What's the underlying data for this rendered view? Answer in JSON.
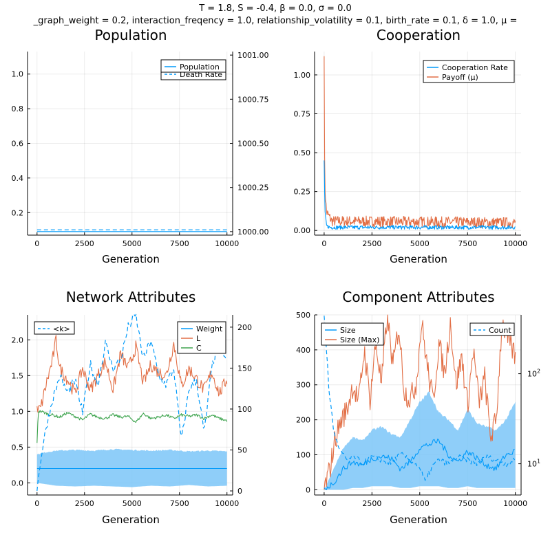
{
  "figure": {
    "suptitle_line1": "T = 1.8, S = -0.4, β = 0.0, σ = 0.0",
    "suptitle_line2": "_graph_weight = 0.2, interaction_freqency = 1.0, relationship_volatility = 0.1, birth_rate = 0.1, δ = 1.0, μ ="
  },
  "colors": {
    "blue": "#009AFA",
    "orange": "#E26F46",
    "green": "#3EA44E",
    "band": "#7BC6F8"
  },
  "chart_data": [
    {
      "id": "population",
      "type": "line",
      "title": "Population",
      "xlabel": "Generation",
      "ylabel": "",
      "xlim": [
        -500,
        10300
      ],
      "xticks": [
        0,
        2500,
        5000,
        7500,
        10000
      ],
      "xtick_labels": [
        "0",
        "2500",
        "5000",
        "7500",
        "10000"
      ],
      "ylim": [
        0.07,
        1.13
      ],
      "yticks": [
        0.2,
        0.4,
        0.6,
        0.8,
        1.0
      ],
      "ytick_labels": [
        "0.2",
        "0.4",
        "0.6",
        "0.8",
        "1.0"
      ],
      "y2lim": [
        999.98,
        1001.02
      ],
      "y2ticks": [
        1000.0,
        1000.25,
        1000.5,
        1000.75,
        1001.0
      ],
      "y2tick_labels": [
        "1000.00",
        "1000.25",
        "1000.50",
        "1000.75",
        "1001.00"
      ],
      "legend_position": "top-right",
      "series": [
        {
          "name": "Population",
          "axis": "right",
          "color": "blue",
          "dash": "solid",
          "x": [
            0,
            10000
          ],
          "y": [
            1000.0,
            1000.0
          ]
        },
        {
          "name": "Death Rate",
          "axis": "left",
          "color": "blue",
          "dash": "dashed",
          "x": [
            0,
            10000
          ],
          "y": [
            0.1,
            0.1
          ]
        }
      ]
    },
    {
      "id": "cooperation",
      "type": "line",
      "title": "Cooperation",
      "xlabel": "Generation",
      "ylabel": "",
      "xlim": [
        -500,
        10300
      ],
      "xticks": [
        0,
        2500,
        5000,
        7500,
        10000
      ],
      "xtick_labels": [
        "0",
        "2500",
        "5000",
        "7500",
        "10000"
      ],
      "ylim": [
        -0.03,
        1.15
      ],
      "yticks": [
        0.0,
        0.25,
        0.5,
        0.75,
        1.0
      ],
      "ytick_labels": [
        "0.00",
        "0.25",
        "0.50",
        "0.75",
        "1.00"
      ],
      "legend_position": "top-right",
      "series": [
        {
          "name": "Cooperation Rate",
          "color": "blue",
          "profile": {
            "x": [
              0,
              40,
              120,
              300,
              10000
            ],
            "y": [
              0.45,
              0.12,
              0.03,
              0.02,
              0.02
            ]
          },
          "noise": 0.01
        },
        {
          "name": "Payoff (μ)",
          "color": "orange",
          "profile": {
            "x": [
              0,
              30,
              120,
              400,
              10000
            ],
            "y": [
              1.12,
              0.3,
              0.12,
              0.06,
              0.05
            ]
          },
          "noise": 0.03
        }
      ]
    },
    {
      "id": "network",
      "type": "line",
      "title": "Network Attributes",
      "xlabel": "Generation",
      "ylabel": "",
      "xlim": [
        -500,
        10300
      ],
      "xticks": [
        0,
        2500,
        5000,
        7500,
        10000
      ],
      "xtick_labels": [
        "0",
        "2500",
        "5000",
        "7500",
        "10000"
      ],
      "ylim": [
        -0.17,
        2.35
      ],
      "yticks": [
        0.0,
        0.5,
        1.0,
        1.5,
        2.0
      ],
      "ytick_labels": [
        "0.0",
        "0.5",
        "1.0",
        "1.5",
        "2.0"
      ],
      "y2lim": [
        -5,
        215
      ],
      "y2ticks": [
        0,
        50,
        100,
        150,
        200
      ],
      "y2tick_labels": [
        "0",
        "50",
        "100",
        "150",
        "200"
      ],
      "legend_left": "top-left",
      "legend_right": "top-right",
      "series": [
        {
          "name": "<k>",
          "axis": "right",
          "color": "blue",
          "dash": "dashed",
          "x": [
            0,
            200,
            500,
            800,
            1200,
            1600,
            2000,
            2400,
            2800,
            3200,
            3600,
            4000,
            4400,
            4800,
            5200,
            5600,
            6000,
            6400,
            6800,
            7200,
            7600,
            8000,
            8400,
            8800,
            9200,
            9600,
            10000
          ],
          "y": [
            0,
            40,
            80,
            110,
            140,
            120,
            135,
            95,
            155,
            130,
            180,
            150,
            160,
            200,
            215,
            160,
            185,
            140,
            130,
            150,
            60,
            125,
            135,
            70,
            150,
            190,
            155
          ]
        },
        {
          "name": "Weight",
          "axis": "left",
          "color": "blue",
          "dash": "solid",
          "x": [
            0,
            10000
          ],
          "y": [
            0.2,
            0.2
          ],
          "band_x": [
            0,
            500,
            1000,
            2000,
            3000,
            4000,
            5000,
            6000,
            7000,
            8000,
            9000,
            10000
          ],
          "band_lower": [
            0.0,
            -0.02,
            -0.04,
            -0.05,
            -0.04,
            -0.05,
            -0.06,
            -0.04,
            -0.05,
            -0.03,
            -0.05,
            -0.04
          ],
          "band_upper": [
            0.4,
            0.43,
            0.45,
            0.46,
            0.45,
            0.47,
            0.46,
            0.45,
            0.46,
            0.44,
            0.45,
            0.44
          ]
        },
        {
          "name": "L",
          "axis": "left",
          "color": "orange",
          "dash": "solid",
          "x": [
            0,
            200,
            500,
            800,
            1000,
            1200,
            1600,
            2000,
            2400,
            2800,
            3200,
            3600,
            4000,
            4400,
            4800,
            5200,
            5600,
            6000,
            6400,
            6800,
            7200,
            7600,
            8000,
            8400,
            8800,
            9200,
            9600,
            10000
          ],
          "y": [
            1.0,
            1.05,
            1.4,
            1.7,
            2.0,
            1.6,
            1.45,
            1.25,
            1.6,
            1.3,
            1.5,
            1.7,
            1.3,
            1.8,
            1.6,
            1.9,
            1.4,
            1.65,
            1.55,
            1.5,
            1.95,
            1.35,
            1.6,
            1.45,
            1.3,
            1.55,
            1.25,
            1.45
          ]
        },
        {
          "name": "C",
          "axis": "left",
          "color": "green",
          "dash": "solid",
          "x": [
            0,
            60,
            200,
            500,
            800,
            1200,
            1600,
            2000,
            2400,
            2800,
            3200,
            3600,
            4000,
            4400,
            4800,
            5200,
            5600,
            6000,
            6400,
            6800,
            7200,
            7600,
            8000,
            8400,
            8800,
            9200,
            9600,
            10000
          ],
          "y": [
            0.55,
            1.0,
            1.0,
            0.97,
            0.95,
            0.92,
            0.98,
            0.93,
            0.88,
            0.96,
            0.92,
            0.9,
            0.95,
            0.92,
            0.93,
            0.85,
            0.97,
            0.9,
            0.92,
            0.95,
            0.9,
            0.95,
            0.93,
            0.95,
            0.9,
            0.95,
            0.9,
            0.87
          ]
        }
      ]
    },
    {
      "id": "component",
      "type": "line",
      "title": "Component Attributes",
      "xlabel": "Generation",
      "ylabel": "",
      "xlim": [
        -500,
        10300
      ],
      "xticks": [
        0,
        2500,
        5000,
        7500,
        10000
      ],
      "xtick_labels": [
        "0",
        "2500",
        "5000",
        "7500",
        "10000"
      ],
      "ylim": [
        -15,
        500
      ],
      "yticks": [
        0,
        100,
        200,
        300,
        400,
        500
      ],
      "ytick_labels": [
        "0",
        "100",
        "200",
        "300",
        "400",
        "500"
      ],
      "y2_scale": "log",
      "y2lim": [
        4.5,
        450
      ],
      "y2ticks": [
        10,
        100
      ],
      "y2tick_base": "10",
      "y2tick_exponents": [
        "1",
        "2"
      ],
      "legend_left": "top-left",
      "legend_right": "top-right",
      "series": [
        {
          "name": "Size",
          "axis": "left",
          "color": "blue",
          "dash": "solid",
          "x": [
            0,
            500,
            1000,
            1500,
            2000,
            2500,
            3000,
            3500,
            4000,
            4500,
            5000,
            5500,
            6000,
            6500,
            7000,
            7500,
            8000,
            8500,
            9000,
            9500,
            10000
          ],
          "y": [
            0,
            20,
            60,
            80,
            70,
            90,
            95,
            90,
            60,
            80,
            120,
            130,
            140,
            100,
            80,
            110,
            90,
            70,
            60,
            100,
            110
          ],
          "band_x": [
            0,
            500,
            1000,
            1500,
            2000,
            2500,
            3000,
            3500,
            4000,
            4500,
            5000,
            5500,
            6000,
            6500,
            7000,
            7500,
            8000,
            8500,
            9000,
            9500,
            10000
          ],
          "band_lower": [
            0,
            0,
            0,
            5,
            5,
            10,
            10,
            10,
            5,
            5,
            10,
            10,
            10,
            5,
            5,
            10,
            5,
            5,
            5,
            5,
            5
          ],
          "band_upper": [
            0,
            60,
            120,
            150,
            140,
            170,
            180,
            160,
            150,
            200,
            250,
            280,
            220,
            200,
            170,
            230,
            190,
            180,
            170,
            200,
            250
          ]
        },
        {
          "name": "Size (Max)",
          "axis": "left",
          "color": "orange",
          "dash": "solid",
          "x": [
            0,
            300,
            600,
            900,
            1200,
            1500,
            1800,
            2100,
            2400,
            2700,
            3000,
            3300,
            3600,
            3900,
            4200,
            4500,
            4800,
            5100,
            5400,
            5700,
            6000,
            6300,
            6600,
            6900,
            7200,
            7500,
            7800,
            8100,
            8400,
            8700,
            9000,
            9300,
            9600,
            10000
          ],
          "y": [
            0,
            60,
            150,
            200,
            230,
            300,
            250,
            400,
            260,
            420,
            300,
            500,
            350,
            470,
            280,
            260,
            300,
            480,
            350,
            250,
            420,
            330,
            480,
            300,
            380,
            240,
            400,
            250,
            320,
            150,
            200,
            480,
            430,
            380
          ]
        },
        {
          "name": "Count",
          "axis": "right",
          "color": "blue",
          "dash": "dashed",
          "x": [
            0,
            100,
            250,
            500,
            800,
            1200,
            1600,
            2000,
            2500,
            3000,
            3500,
            4000,
            4500,
            5000,
            5300,
            5600,
            6000,
            6500,
            7000,
            7500,
            8000,
            8500,
            9000,
            9500,
            10000
          ],
          "y": [
            450,
            200,
            60,
            22,
            14,
            11,
            12,
            10,
            12,
            11,
            10,
            13,
            11,
            9,
            6,
            9,
            11,
            10,
            12,
            11,
            10,
            12,
            11,
            10,
            11
          ]
        }
      ]
    }
  ]
}
